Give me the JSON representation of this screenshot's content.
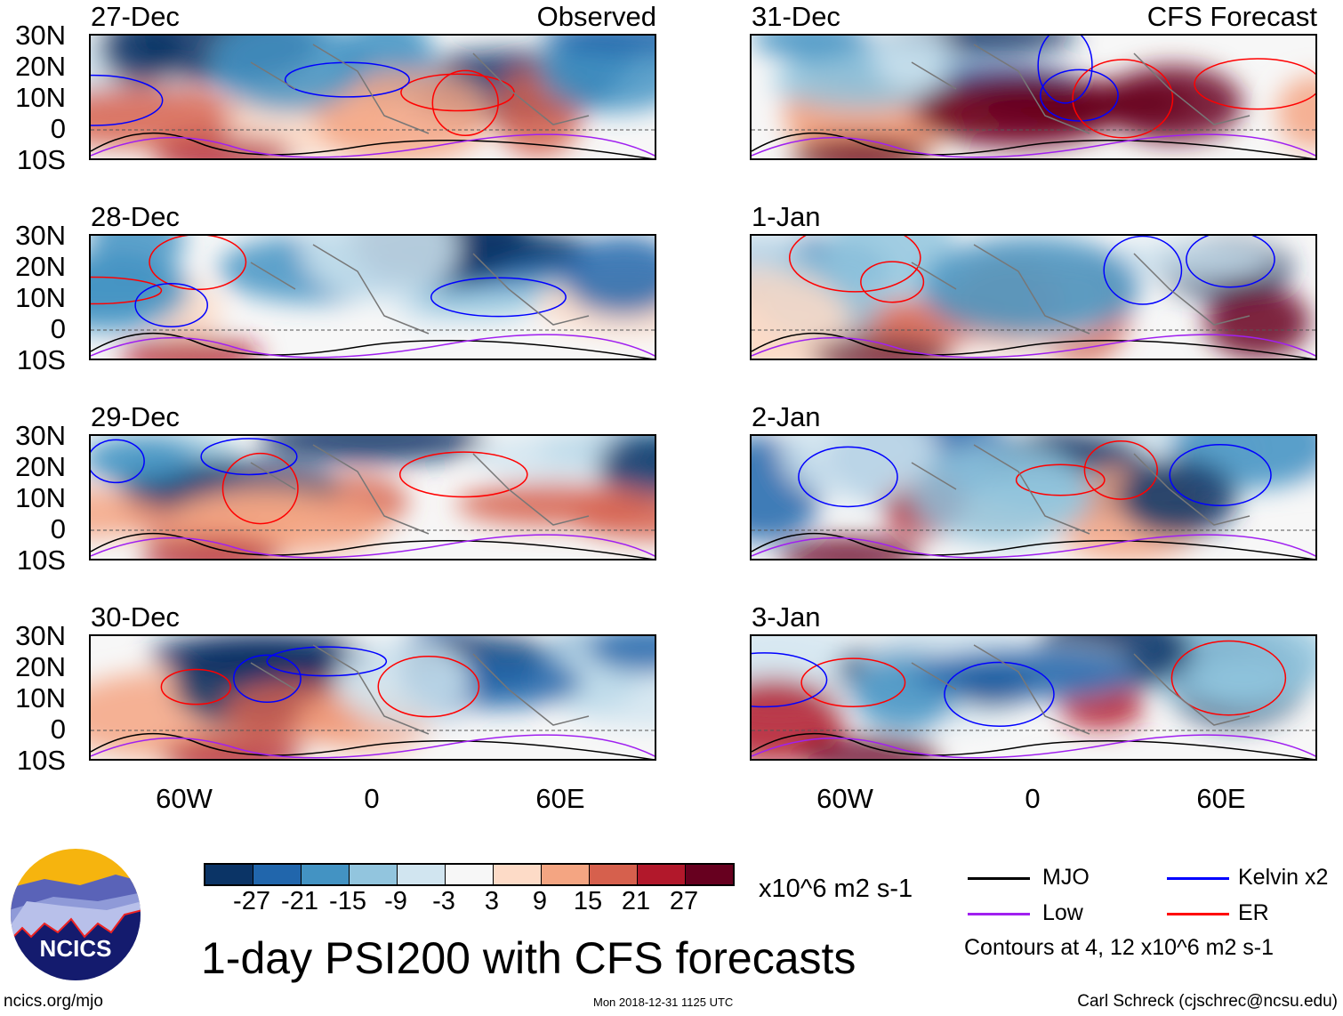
{
  "panels": [
    {
      "date": "27-Dec",
      "title": "Observed",
      "column": "left"
    },
    {
      "date": "28-Dec",
      "column": "left"
    },
    {
      "date": "29-Dec",
      "column": "left"
    },
    {
      "date": "30-Dec",
      "column": "left"
    },
    {
      "date": "31-Dec",
      "title": "CFS Forecast",
      "column": "right"
    },
    {
      "date": "1-Jan",
      "column": "right"
    },
    {
      "date": "2-Jan",
      "column": "right"
    },
    {
      "date": "3-Jan",
      "column": "right"
    }
  ],
  "lat_labels": [
    "30N",
    "20N",
    "10N",
    "0",
    "10S"
  ],
  "lon_labels": [
    "60W",
    "0",
    "60E"
  ],
  "colorbar": {
    "colors": [
      "#0b3466",
      "#2166ac",
      "#4393c3",
      "#92c5de",
      "#d1e5f0",
      "#f7f7f7",
      "#fddbc7",
      "#f4a582",
      "#d6604d",
      "#b2182b",
      "#67001f"
    ],
    "labels": [
      "-27",
      "-21",
      "-15",
      "-9",
      "-3",
      "3",
      "9",
      "15",
      "21",
      "27"
    ],
    "units": "x10^6 m2 s-1"
  },
  "legend": {
    "items": [
      {
        "label": "MJO",
        "color": "#000000"
      },
      {
        "label": "Kelvin x2",
        "color": "#0000ff"
      },
      {
        "label": "Low",
        "color": "#a020f0"
      },
      {
        "label": "ER",
        "color": "#ff0000"
      }
    ],
    "contours_note": "Contours at 4, 12 x10^6 m2 s-1"
  },
  "main_title": "1-day PSI200 with CFS forecasts",
  "logo_text": "NCICS",
  "footer": {
    "url": "ncics.org/mjo",
    "timestamp": "Mon 2018-12-31 1125 UTC",
    "credit": "Carl Schreck (cjschrec@ncsu.edu)"
  }
}
